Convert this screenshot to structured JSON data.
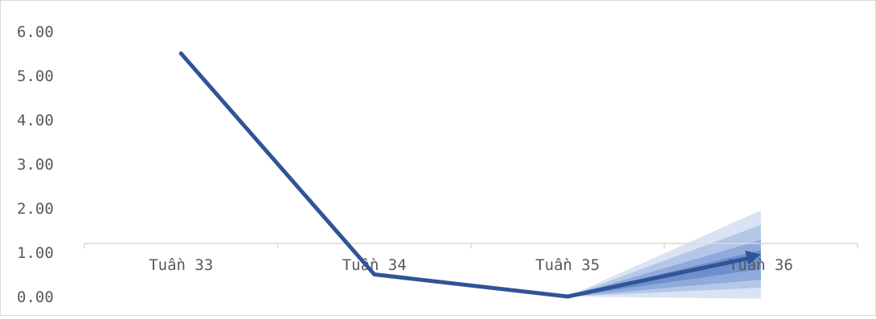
{
  "chart_data": {
    "type": "line",
    "title": "",
    "xlabel": "",
    "ylabel": "",
    "categories": [
      "Tuần 33",
      "Tuần 34",
      "Tuần 35",
      "Tuần 36"
    ],
    "y_ticks": [
      "0.00",
      "1.00",
      "2.00",
      "3.00",
      "4.00",
      "5.00",
      "6.00"
    ],
    "ylim": [
      0,
      6
    ],
    "series": [
      {
        "values": [
          5.5,
          0.5,
          0.0,
          null
        ],
        "color": "#2f5597"
      }
    ],
    "forecast": {
      "from_category": "Tuần 35",
      "to_category": "Tuần 36",
      "start_value": 0.0,
      "end_value": 0.95,
      "bands": [
        {
          "low": -0.05,
          "high": 1.95,
          "color": "#dae3f3"
        },
        {
          "low": 0.2,
          "high": 1.62,
          "color": "#b4c7e7"
        },
        {
          "low": 0.38,
          "high": 1.28,
          "color": "#8faadc"
        },
        {
          "low": 0.62,
          "high": 1.05,
          "color": "#6f8fcc"
        }
      ],
      "arrow_color": "#2f5597"
    },
    "category_axis_at": 1.2,
    "grid": false,
    "legend": "none"
  }
}
